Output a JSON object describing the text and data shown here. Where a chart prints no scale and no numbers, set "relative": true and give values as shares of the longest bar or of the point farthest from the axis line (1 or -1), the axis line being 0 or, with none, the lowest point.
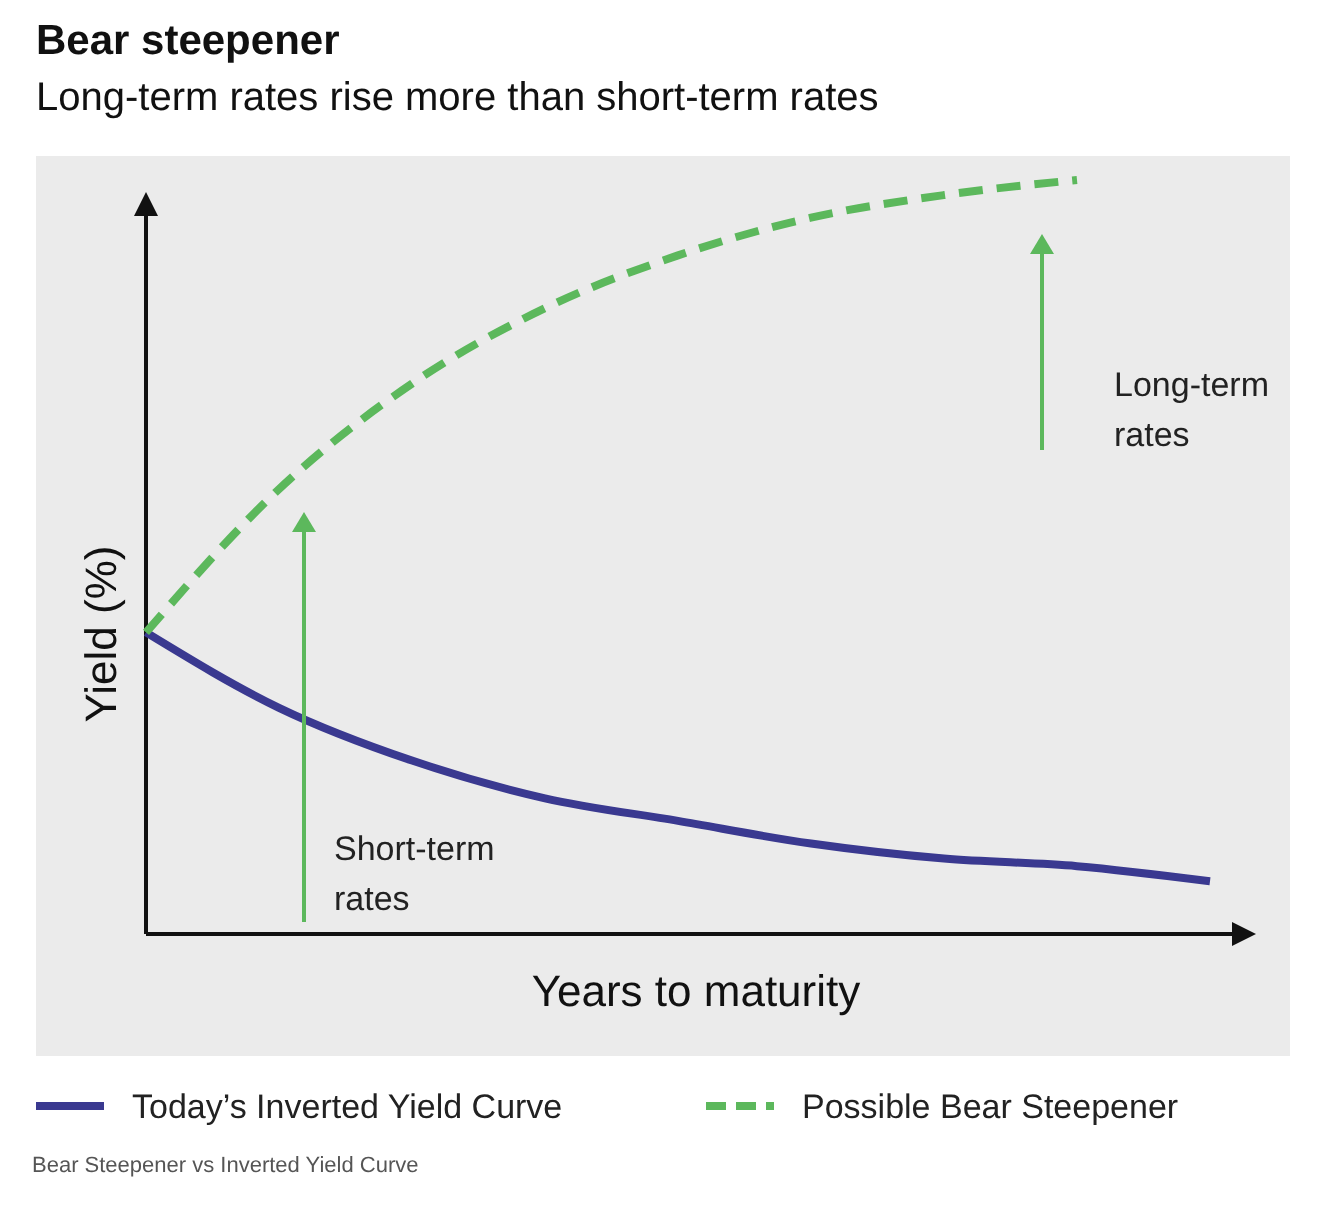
{
  "chart_data": {
    "type": "line",
    "title": "Bear steepener",
    "subtitle": "Long-term rates rise more than short-term rates",
    "xlabel": "Years to maturity",
    "ylabel": "Yield (%)",
    "relative": true,
    "categories": [
      null,
      null,
      null,
      null,
      null,
      null,
      null,
      null,
      null
    ],
    "series": [
      {
        "name": "Today’s Inverted Yield Curve",
        "color": "#3a3990",
        "line_style": "solid",
        "values": [
          0.4,
          0.3,
          0.23,
          0.18,
          0.15,
          0.12,
          0.1,
          0.09,
          0.07
        ]
      },
      {
        "name": "Possible Bear Steepener",
        "color": "#5cb85c",
        "line_style": "dashed",
        "values": [
          0.4,
          0.59,
          0.73,
          0.83,
          0.9,
          0.95,
          0.98,
          1.0,
          null
        ]
      }
    ],
    "annotations": [
      "Short-term rates",
      "Long-term rates",
      "Bear Steepener vs Inverted Yield Curve"
    ],
    "legend": "bottom",
    "grid": false,
    "marker": "none"
  }
}
